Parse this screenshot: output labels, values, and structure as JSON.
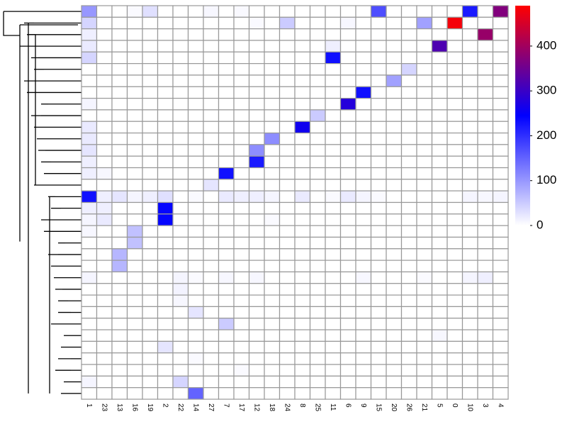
{
  "chart_data": {
    "type": "heatmap",
    "categories": [
      "1",
      "23",
      "13",
      "16",
      "19",
      "2",
      "22",
      "14",
      "27",
      "7",
      "17",
      "12",
      "18",
      "24",
      "8",
      "25",
      "11",
      "6",
      "9",
      "15",
      "20",
      "26",
      "21",
      "5",
      "0",
      "10",
      "3",
      "4"
    ],
    "values": [
      [
        100,
        0,
        0,
        5,
        30,
        0,
        0,
        0,
        8,
        0,
        6,
        0,
        0,
        0,
        0,
        0,
        0,
        0,
        0,
        170,
        0,
        0,
        0,
        0,
        0,
        220,
        0,
        370
      ],
      [
        40,
        0,
        0,
        0,
        0,
        0,
        0,
        0,
        0,
        0,
        0,
        5,
        0,
        50,
        0,
        0,
        0,
        8,
        0,
        0,
        0,
        0,
        90,
        0,
        480,
        0,
        0,
        0
      ],
      [
        15,
        0,
        0,
        0,
        0,
        0,
        0,
        0,
        0,
        0,
        0,
        0,
        0,
        0,
        0,
        0,
        0,
        0,
        0,
        0,
        0,
        0,
        0,
        0,
        0,
        0,
        390,
        0
      ],
      [
        20,
        0,
        0,
        0,
        0,
        0,
        0,
        0,
        0,
        0,
        0,
        0,
        0,
        0,
        0,
        0,
        15,
        0,
        0,
        0,
        0,
        0,
        0,
        320,
        0,
        0,
        0,
        0
      ],
      [
        40,
        0,
        0,
        0,
        0,
        0,
        0,
        0,
        0,
        0,
        0,
        0,
        0,
        0,
        0,
        0,
        230,
        0,
        0,
        0,
        0,
        0,
        0,
        0,
        0,
        0,
        0,
        0
      ],
      [
        0,
        0,
        0,
        0,
        0,
        0,
        0,
        0,
        0,
        0,
        0,
        0,
        0,
        0,
        0,
        0,
        0,
        0,
        0,
        0,
        0,
        40,
        0,
        0,
        0,
        0,
        0,
        0
      ],
      [
        0,
        0,
        0,
        0,
        0,
        0,
        0,
        0,
        0,
        0,
        0,
        0,
        0,
        0,
        0,
        0,
        0,
        0,
        0,
        0,
        90,
        0,
        0,
        0,
        0,
        0,
        0,
        0
      ],
      [
        0,
        0,
        0,
        0,
        0,
        0,
        0,
        0,
        0,
        0,
        0,
        0,
        0,
        0,
        0,
        0,
        0,
        0,
        230,
        0,
        0,
        0,
        0,
        0,
        0,
        0,
        0,
        0
      ],
      [
        10,
        0,
        0,
        0,
        0,
        0,
        0,
        0,
        0,
        0,
        0,
        0,
        0,
        0,
        0,
        0,
        0,
        280,
        0,
        0,
        0,
        0,
        0,
        0,
        0,
        0,
        0,
        0
      ],
      [
        0,
        0,
        0,
        0,
        0,
        0,
        0,
        0,
        0,
        0,
        0,
        0,
        0,
        0,
        0,
        50,
        0,
        0,
        0,
        0,
        0,
        0,
        0,
        0,
        0,
        0,
        0,
        0
      ],
      [
        20,
        0,
        0,
        0,
        0,
        0,
        0,
        0,
        0,
        0,
        0,
        0,
        0,
        0,
        260,
        0,
        0,
        0,
        0,
        0,
        0,
        0,
        0,
        0,
        0,
        0,
        0,
        0
      ],
      [
        20,
        0,
        0,
        0,
        0,
        0,
        0,
        0,
        0,
        0,
        0,
        0,
        110,
        0,
        0,
        0,
        0,
        0,
        0,
        0,
        0,
        0,
        0,
        0,
        0,
        0,
        0,
        0
      ],
      [
        25,
        0,
        0,
        0,
        0,
        0,
        0,
        0,
        0,
        0,
        0,
        110,
        0,
        0,
        0,
        0,
        0,
        0,
        0,
        0,
        0,
        0,
        0,
        0,
        0,
        0,
        0,
        0
      ],
      [
        15,
        0,
        0,
        0,
        0,
        0,
        0,
        0,
        0,
        0,
        0,
        220,
        0,
        0,
        0,
        0,
        0,
        0,
        0,
        0,
        0,
        0,
        0,
        0,
        0,
        0,
        0,
        0
      ],
      [
        15,
        8,
        0,
        0,
        0,
        0,
        0,
        0,
        0,
        230,
        0,
        0,
        0,
        0,
        0,
        0,
        0,
        0,
        0,
        0,
        0,
        0,
        0,
        0,
        0,
        0,
        0,
        0
      ],
      [
        0,
        0,
        0,
        0,
        0,
        0,
        0,
        0,
        25,
        0,
        0,
        0,
        0,
        0,
        0,
        0,
        0,
        0,
        0,
        0,
        0,
        0,
        0,
        0,
        0,
        0,
        0,
        0
      ],
      [
        230,
        15,
        25,
        10,
        15,
        30,
        0,
        5,
        0,
        20,
        15,
        15,
        10,
        0,
        20,
        0,
        5,
        20,
        10,
        5,
        0,
        0,
        0,
        0,
        0,
        10,
        8,
        10
      ],
      [
        15,
        15,
        0,
        0,
        0,
        240,
        0,
        0,
        0,
        0,
        0,
        0,
        0,
        0,
        0,
        0,
        0,
        0,
        0,
        0,
        0,
        0,
        0,
        0,
        0,
        0,
        0,
        0
      ],
      [
        10,
        20,
        0,
        0,
        0,
        240,
        0,
        0,
        0,
        0,
        0,
        0,
        5,
        0,
        0,
        0,
        0,
        0,
        0,
        0,
        0,
        0,
        0,
        0,
        0,
        0,
        0,
        0
      ],
      [
        8,
        0,
        0,
        60,
        0,
        0,
        0,
        0,
        0,
        0,
        0,
        0,
        0,
        0,
        0,
        0,
        0,
        0,
        0,
        0,
        0,
        0,
        0,
        0,
        0,
        0,
        0,
        0
      ],
      [
        0,
        0,
        0,
        60,
        0,
        0,
        0,
        0,
        0,
        0,
        0,
        0,
        0,
        0,
        0,
        0,
        0,
        0,
        0,
        0,
        0,
        0,
        0,
        0,
        0,
        0,
        0,
        0
      ],
      [
        0,
        0,
        70,
        0,
        0,
        0,
        0,
        0,
        0,
        0,
        0,
        0,
        0,
        0,
        0,
        0,
        0,
        0,
        0,
        0,
        0,
        0,
        0,
        0,
        0,
        0,
        0,
        0
      ],
      [
        0,
        0,
        70,
        0,
        0,
        0,
        0,
        0,
        0,
        0,
        0,
        0,
        0,
        0,
        0,
        0,
        0,
        0,
        0,
        0,
        0,
        0,
        0,
        0,
        0,
        0,
        0,
        0
      ],
      [
        10,
        0,
        0,
        0,
        0,
        0,
        10,
        5,
        0,
        8,
        0,
        8,
        0,
        0,
        0,
        0,
        0,
        0,
        8,
        0,
        0,
        0,
        5,
        0,
        0,
        10,
        15,
        0
      ],
      [
        0,
        0,
        0,
        0,
        0,
        0,
        12,
        0,
        0,
        0,
        0,
        0,
        0,
        0,
        0,
        0,
        0,
        0,
        0,
        0,
        0,
        0,
        0,
        0,
        0,
        0,
        0,
        0
      ],
      [
        0,
        0,
        0,
        0,
        0,
        0,
        8,
        0,
        0,
        0,
        0,
        0,
        0,
        0,
        0,
        0,
        0,
        0,
        0,
        0,
        0,
        0,
        0,
        0,
        0,
        0,
        0,
        0
      ],
      [
        0,
        0,
        0,
        0,
        0,
        0,
        0,
        25,
        0,
        0,
        0,
        0,
        0,
        0,
        0,
        0,
        0,
        0,
        0,
        0,
        0,
        0,
        0,
        0,
        0,
        0,
        0,
        0
      ],
      [
        0,
        0,
        0,
        0,
        0,
        0,
        0,
        0,
        0,
        50,
        0,
        0,
        0,
        0,
        0,
        0,
        0,
        0,
        0,
        0,
        0,
        0,
        0,
        0,
        0,
        0,
        0,
        0
      ],
      [
        0,
        0,
        0,
        0,
        0,
        0,
        0,
        0,
        0,
        0,
        0,
        0,
        0,
        0,
        0,
        0,
        0,
        0,
        0,
        0,
        0,
        0,
        0,
        8,
        0,
        0,
        0,
        0
      ],
      [
        0,
        0,
        0,
        0,
        0,
        25,
        0,
        0,
        0,
        0,
        0,
        0,
        0,
        0,
        0,
        0,
        0,
        0,
        0,
        0,
        0,
        0,
        0,
        0,
        0,
        0,
        0,
        0
      ],
      [
        0,
        0,
        0,
        0,
        0,
        0,
        0,
        5,
        0,
        0,
        0,
        0,
        0,
        0,
        0,
        0,
        0,
        0,
        0,
        0,
        0,
        0,
        0,
        0,
        0,
        0,
        0,
        0
      ],
      [
        0,
        0,
        0,
        0,
        0,
        0,
        0,
        0,
        0,
        0,
        5,
        0,
        0,
        0,
        0,
        0,
        0,
        0,
        0,
        0,
        0,
        0,
        0,
        0,
        0,
        0,
        0,
        0
      ],
      [
        10,
        0,
        0,
        0,
        0,
        0,
        40,
        0,
        0,
        0,
        0,
        0,
        0,
        0,
        0,
        0,
        0,
        0,
        0,
        0,
        0,
        0,
        0,
        0,
        0,
        0,
        0,
        0
      ],
      [
        0,
        0,
        0,
        0,
        0,
        0,
        0,
        150,
        0,
        0,
        0,
        0,
        0,
        0,
        0,
        0,
        0,
        0,
        0,
        0,
        0,
        0,
        0,
        0,
        0,
        0,
        0,
        0
      ]
    ],
    "colors": [
      "#ffffff",
      "#0000ff",
      "#ff0000"
    ],
    "zlim": [
      0,
      490
    ],
    "zticks": [
      0,
      100,
      200,
      300,
      400
    ]
  }
}
